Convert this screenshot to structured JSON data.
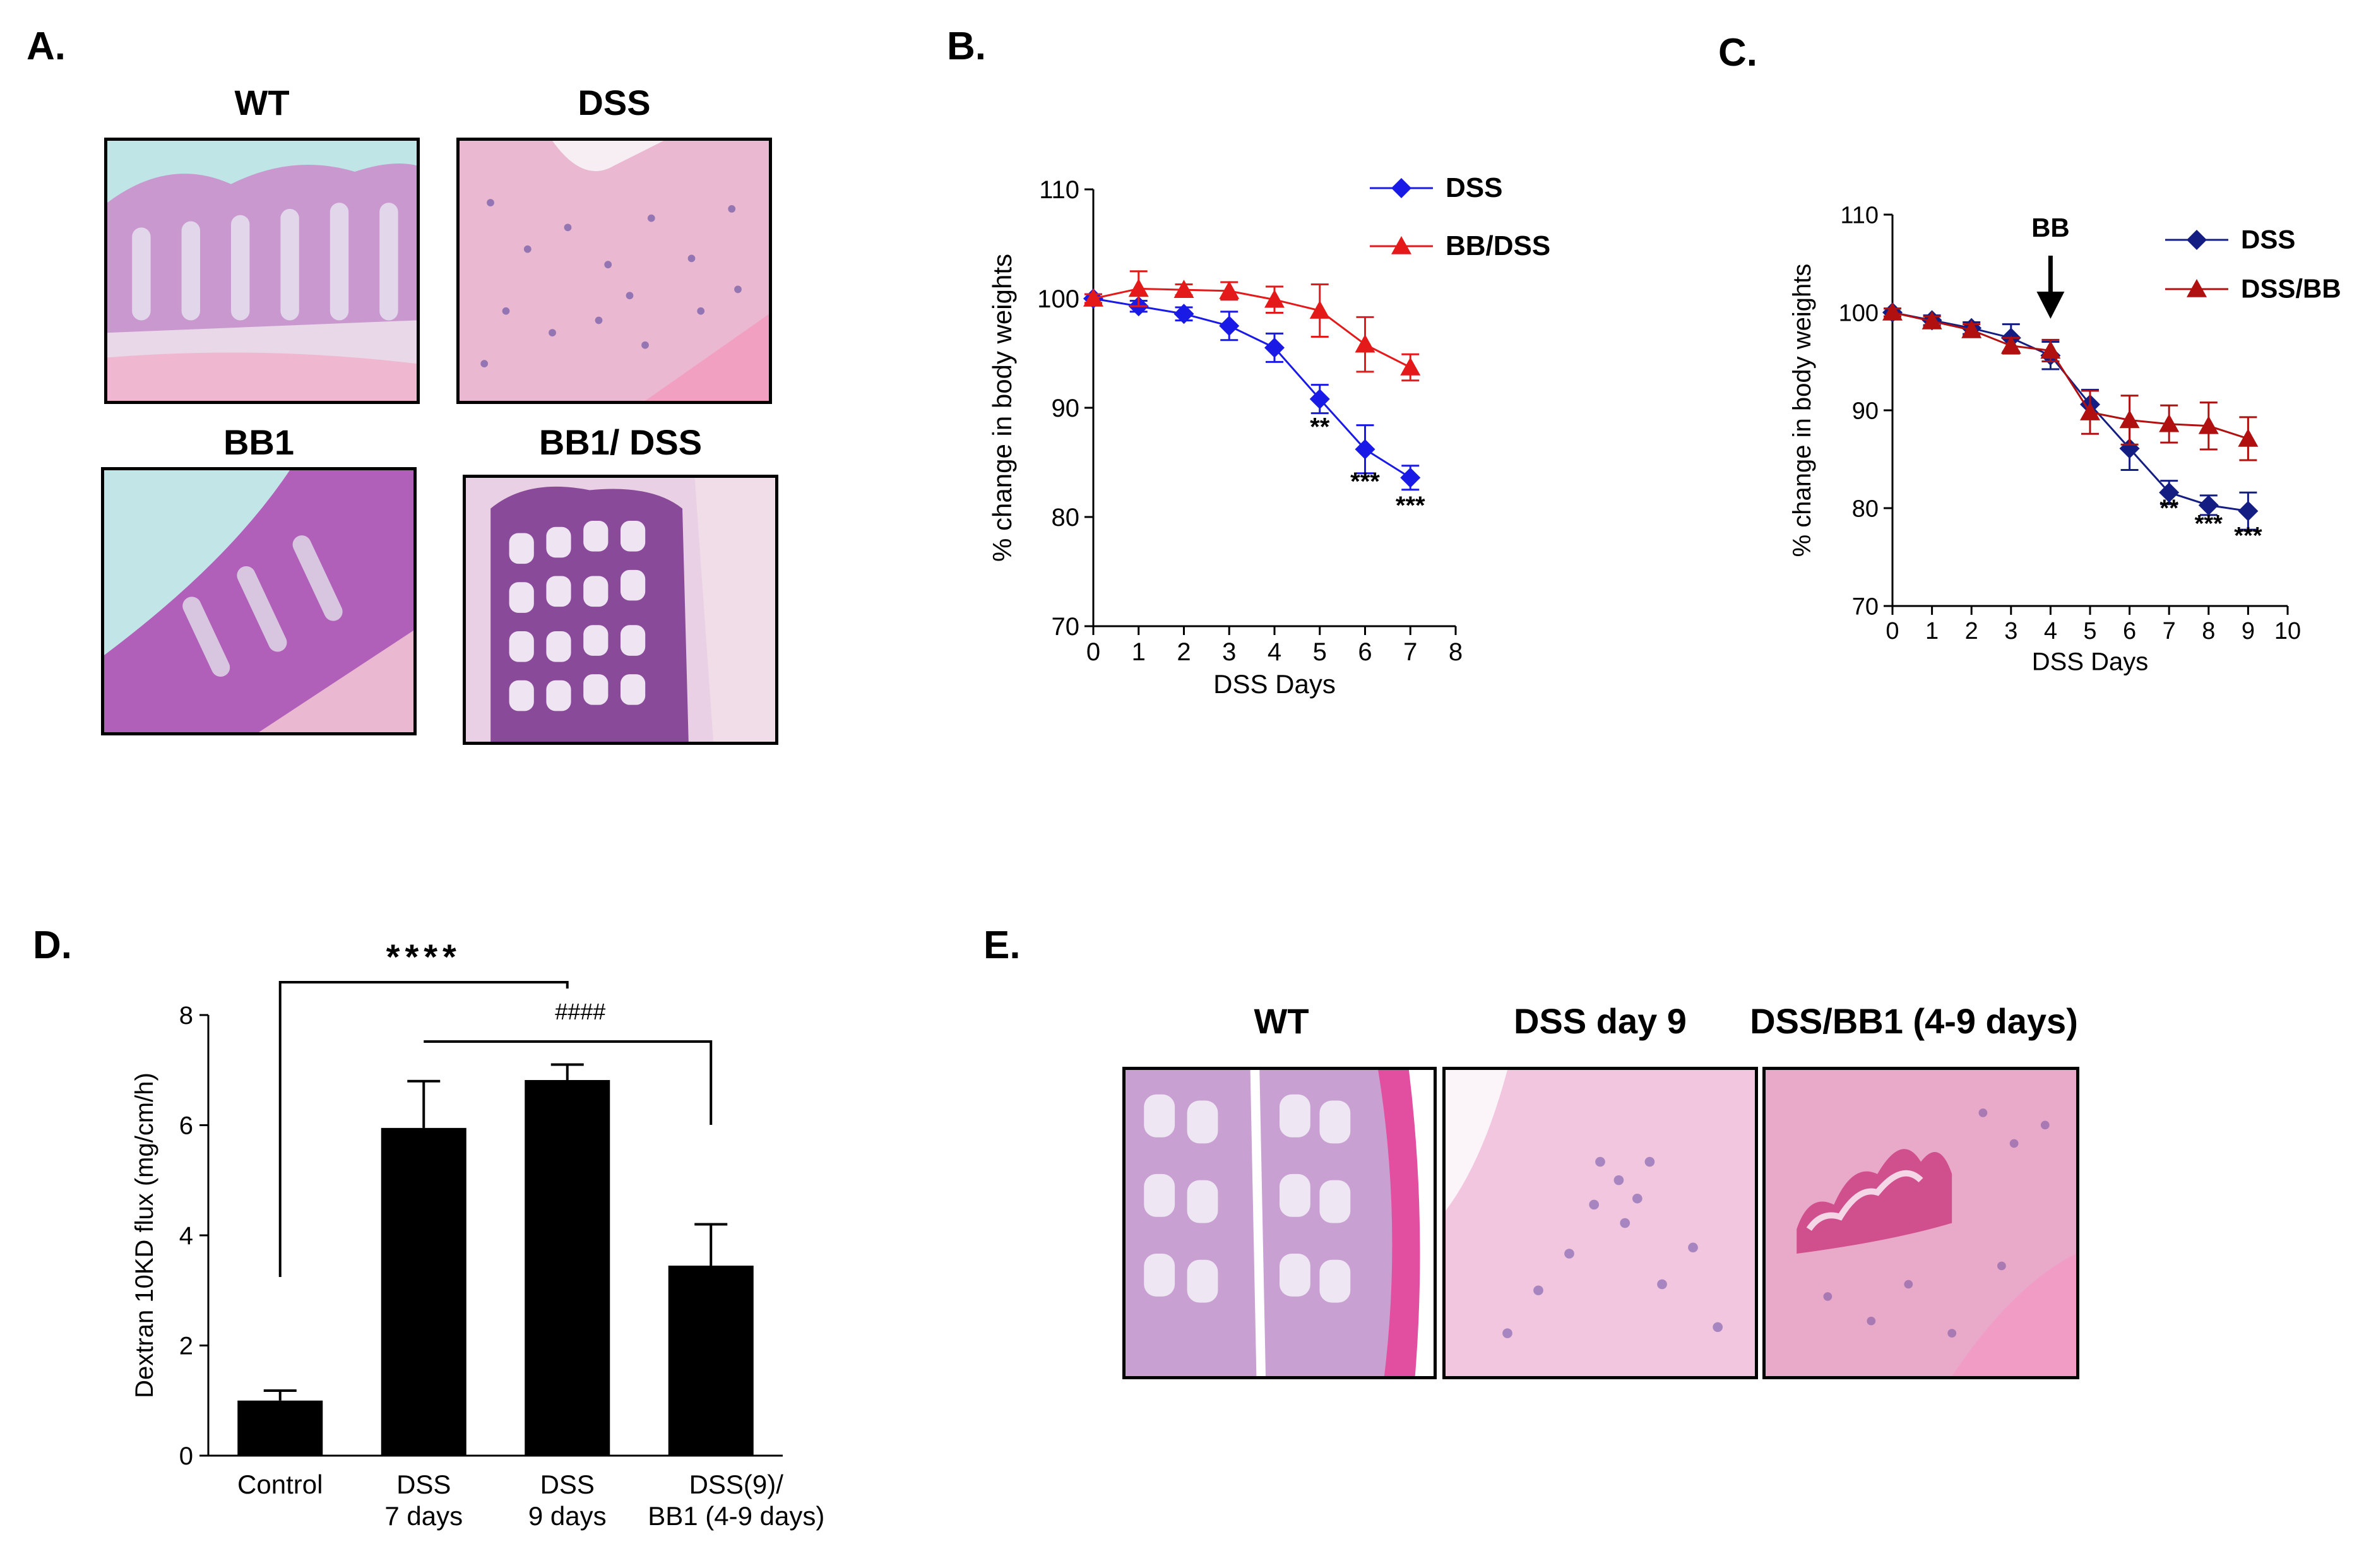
{
  "panels": {
    "a": {
      "letter": "A.",
      "images": [
        {
          "title": "WT"
        },
        {
          "title": "DSS"
        },
        {
          "title": "BB1"
        },
        {
          "title": "BB1/ DSS"
        }
      ]
    },
    "b": {
      "letter": "B."
    },
    "c": {
      "letter": "C."
    },
    "d": {
      "letter": "D."
    },
    "e": {
      "letter": "E.",
      "images": [
        {
          "title": "WT"
        },
        {
          "title": "DSS day 9"
        },
        {
          "title": "DSS/BB1 (4-9 days)"
        }
      ]
    }
  },
  "colors": {
    "blue": "#1a1ae6",
    "navy": "#141e82",
    "red": "#e41a1a",
    "dark_red": "#b01010",
    "bar": "#000000"
  },
  "chart_data": [
    {
      "id": "B",
      "type": "line",
      "xlabel": "DSS Days",
      "ylabel": "% change in body weights",
      "xlim": [
        0,
        8
      ],
      "ylim": [
        70,
        110
      ],
      "xticks": [
        0,
        1,
        2,
        3,
        4,
        5,
        6,
        7,
        8
      ],
      "yticks": [
        70,
        80,
        90,
        100,
        110
      ],
      "legend_position": "top-right",
      "series": [
        {
          "name": "DSS",
          "marker": "diamond",
          "color": "#1a1ae6",
          "x": [
            0,
            1,
            2,
            3,
            4,
            5,
            6,
            7
          ],
          "y": [
            100,
            99.3,
            98.6,
            97.5,
            95.5,
            90.8,
            86.2,
            83.6
          ],
          "err": [
            0.4,
            0.5,
            0.6,
            1.3,
            1.3,
            1.3,
            2.2,
            1.1
          ]
        },
        {
          "name": "BB/DSS",
          "marker": "triangle",
          "color": "#e41a1a",
          "x": [
            0,
            1,
            2,
            3,
            4,
            5,
            6,
            7
          ],
          "y": [
            100,
            100.9,
            100.8,
            100.7,
            99.9,
            98.9,
            95.8,
            93.7
          ],
          "err": [
            0.4,
            1.6,
            0.5,
            0.8,
            1.2,
            2.4,
            2.5,
            1.2
          ]
        }
      ],
      "annotations": [
        {
          "x": 5,
          "y": 87.5,
          "text": "**"
        },
        {
          "x": 6,
          "y": 82.5,
          "text": "***"
        },
        {
          "x": 7,
          "y": 80.3,
          "text": "***"
        }
      ]
    },
    {
      "id": "C",
      "type": "line",
      "xlabel": "DSS Days",
      "ylabel": "% change in body weights",
      "xlim": [
        0,
        10
      ],
      "ylim": [
        70,
        110
      ],
      "xticks": [
        0,
        1,
        2,
        3,
        4,
        5,
        6,
        7,
        8,
        9,
        10
      ],
      "yticks": [
        70,
        80,
        90,
        100,
        110
      ],
      "legend_position": "top-right",
      "series": [
        {
          "name": "DSS",
          "marker": "diamond",
          "color": "#141e82",
          "x": [
            0,
            1,
            2,
            3,
            4,
            5,
            6,
            7,
            8,
            9
          ],
          "y": [
            100,
            99.2,
            98.4,
            97.4,
            95.6,
            90.6,
            86.1,
            81.6,
            80.3,
            79.7
          ],
          "err": [
            0.4,
            0.5,
            0.6,
            1.4,
            1.4,
            1.5,
            2.2,
            1.2,
            1.0,
            1.9
          ]
        },
        {
          "name": "DSS/BB",
          "marker": "triangle",
          "color": "#b01010",
          "x": [
            0,
            1,
            2,
            3,
            4,
            5,
            6,
            7,
            8,
            9
          ],
          "y": [
            100,
            99.1,
            98.2,
            96.6,
            96.1,
            89.8,
            89.0,
            88.6,
            88.4,
            87.1
          ],
          "err": [
            0.4,
            0.5,
            0.6,
            0.8,
            1.1,
            2.2,
            2.5,
            1.9,
            2.4,
            2.2
          ]
        }
      ],
      "arrow": {
        "x": 4,
        "label": "BB"
      },
      "annotations": [
        {
          "x": 7,
          "y": 79.2,
          "text": "**"
        },
        {
          "x": 8,
          "y": 77.6,
          "text": "***"
        },
        {
          "x": 9,
          "y": 76.4,
          "text": "***"
        }
      ]
    },
    {
      "id": "D",
      "type": "bar",
      "ylabel": "Dextran 10KD flux (mg/cm/h)",
      "ylim": [
        0,
        8
      ],
      "yticks": [
        0,
        2,
        4,
        6,
        8
      ],
      "categories": [
        [
          "Control"
        ],
        [
          "DSS",
          "7 days"
        ],
        [
          "DSS",
          "9 days"
        ],
        [
          "DSS(9)/",
          "BB1 (4-9 days)"
        ]
      ],
      "values": [
        1.0,
        5.95,
        6.82,
        3.45
      ],
      "err": [
        0.18,
        0.85,
        0.28,
        0.75
      ],
      "significance": [
        {
          "from": 0,
          "to": 2,
          "text": "****"
        },
        {
          "from": 1,
          "to": 3,
          "text": "####"
        }
      ]
    }
  ]
}
